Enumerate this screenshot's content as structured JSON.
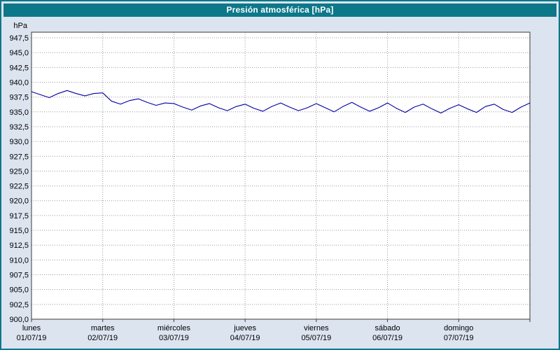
{
  "title": "Presión atmosférica [hPa]",
  "colors": {
    "frame": "#0d7889",
    "window_bg": "#dce4f0",
    "plot_bg": "#ffffff",
    "grid": "#9a9a9a",
    "axis": "#3a3a3a",
    "series": "#0000a0",
    "title_text": "#ffffff"
  },
  "chart_data": {
    "type": "line",
    "title": "Presión atmosférica [hPa]",
    "ylabel": "hPa",
    "ylim": [
      900.0,
      947.5
    ],
    "ytick_step": 2.5,
    "ytick_labels": [
      "947,5",
      "945,0",
      "942,5",
      "940,0",
      "937,5",
      "935,0",
      "932,5",
      "930,0",
      "927,5",
      "925,0",
      "922,5",
      "920,0",
      "917,5",
      "915,0",
      "912,5",
      "910,0",
      "907,5",
      "905,0",
      "902,5",
      "900,0"
    ],
    "grid": "dashed",
    "legend_position": "none",
    "x_days": [
      {
        "name": "lunes",
        "date": "01/07/19"
      },
      {
        "name": "martes",
        "date": "02/07/19"
      },
      {
        "name": "miércoles",
        "date": "03/07/19"
      },
      {
        "name": "jueves",
        "date": "04/07/19"
      },
      {
        "name": "viernes",
        "date": "05/07/19"
      },
      {
        "name": "sábado",
        "date": "06/07/19"
      },
      {
        "name": "domingo",
        "date": "07/07/19"
      }
    ],
    "points_per_day": 8,
    "series": [
      {
        "name": "Presión atmosférica",
        "color": "#0000a0",
        "values": [
          938.4,
          937.9,
          937.4,
          938.1,
          938.6,
          938.1,
          937.7,
          938.1,
          938.2,
          936.8,
          936.3,
          936.9,
          937.2,
          936.6,
          936.1,
          936.5,
          936.4,
          935.8,
          935.3,
          936.0,
          936.4,
          935.7,
          935.2,
          935.9,
          936.3,
          935.6,
          935.1,
          935.9,
          936.5,
          935.8,
          935.2,
          935.7,
          936.4,
          935.7,
          935.0,
          935.9,
          936.6,
          935.8,
          935.1,
          935.7,
          936.5,
          935.6,
          934.9,
          935.8,
          936.3,
          935.5,
          934.8,
          935.6,
          936.2,
          935.5,
          934.9,
          935.9,
          936.3,
          935.4,
          934.9,
          935.8,
          936.5
        ]
      }
    ]
  }
}
